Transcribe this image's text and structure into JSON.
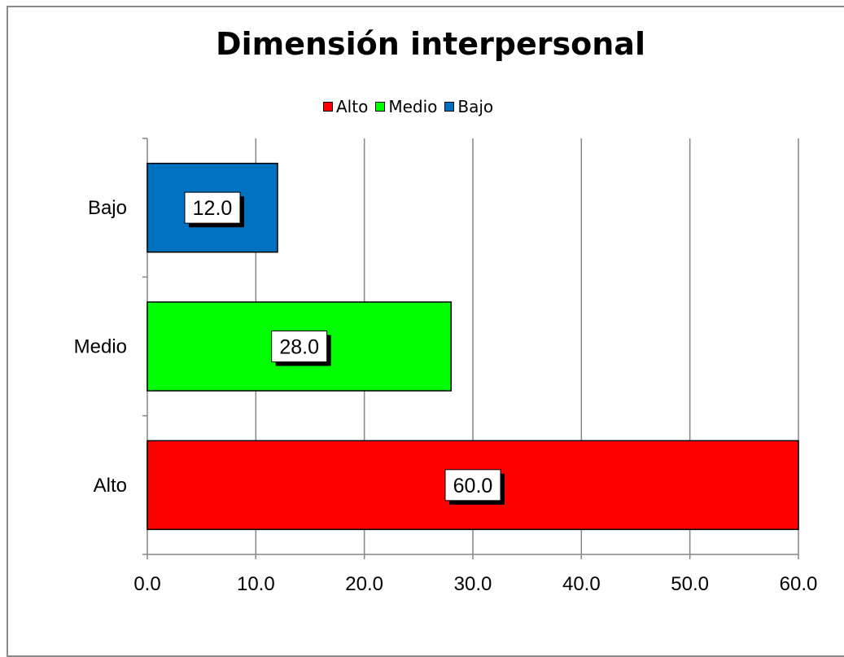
{
  "chart_data": {
    "type": "bar",
    "orientation": "horizontal",
    "title": "Dimensión interpersonal",
    "categories": [
      "Alto",
      "Medio",
      "Bajo"
    ],
    "values": [
      60.0,
      28.0,
      12.0
    ],
    "data_labels": [
      "60.0",
      "28.0",
      "12.0"
    ],
    "colors": [
      "#ff0000",
      "#00ff00",
      "#0070c0"
    ],
    "legend": [
      {
        "label": "Alto",
        "color": "#ff0000"
      },
      {
        "label": "Medio",
        "color": "#00ff00"
      },
      {
        "label": "Bajo",
        "color": "#0070c0"
      }
    ],
    "legend_position": "top",
    "xlim": [
      0,
      60
    ],
    "x_ticks": [
      0,
      10,
      20,
      30,
      40,
      50,
      60
    ],
    "x_tick_labels": [
      "0.0",
      "10.0",
      "20.0",
      "30.0",
      "40.0",
      "50.0",
      "60.0"
    ],
    "grid": "vertical",
    "xlabel": "",
    "ylabel": ""
  }
}
